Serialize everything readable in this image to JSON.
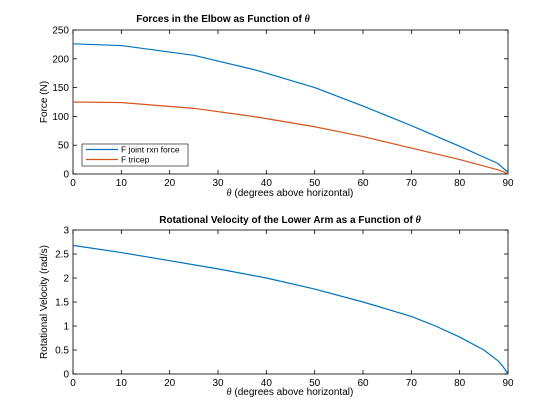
{
  "chart_data": [
    {
      "type": "line",
      "title": "Forces in the Elbow as Function of",
      "title_symbol": "θ",
      "xlabel_symbol": "θ",
      "xlabel": "(degrees above horizontal)",
      "ylabel": "Force (N)",
      "xlim": [
        0,
        90
      ],
      "ylim": [
        0,
        250
      ],
      "xticks": [
        "0",
        "10",
        "20",
        "30",
        "40",
        "50",
        "60",
        "70",
        "80",
        "90"
      ],
      "yticks": [
        "0",
        "50",
        "100",
        "150",
        "200",
        "250"
      ],
      "grid": false,
      "legend": "bottom-left",
      "series": [
        {
          "name": "F joint rxn force",
          "color": "#0072BD",
          "x": [
            0,
            10,
            25,
            38,
            50,
            60,
            70,
            80,
            88,
            89,
            90
          ],
          "y": [
            226,
            223,
            206,
            180,
            150,
            118,
            84,
            48,
            18,
            10,
            3
          ]
        },
        {
          "name": "F tricep",
          "color": "#D95319",
          "x": [
            0,
            10,
            25,
            38,
            50,
            60,
            70,
            80,
            88,
            89,
            90
          ],
          "y": [
            125,
            124,
            114,
            99,
            82,
            65,
            45,
            25,
            7,
            4,
            0
          ]
        }
      ]
    },
    {
      "type": "line",
      "title": "Rotational Velocity of the Lower Arm as a Function of",
      "title_symbol": "θ",
      "xlabel_symbol": "θ",
      "xlabel": "(degrees above horizontal)",
      "ylabel": "Rotational Velocity (rad/s)",
      "xlim": [
        0,
        90
      ],
      "ylim": [
        0,
        3
      ],
      "xticks": [
        "0",
        "10",
        "20",
        "30",
        "40",
        "50",
        "60",
        "70",
        "80",
        "90"
      ],
      "yticks": [
        "0",
        "0.5",
        "1",
        "1.5",
        "2",
        "2.5",
        "3"
      ],
      "grid": false,
      "series": [
        {
          "color": "#0072BD",
          "x": [
            0,
            10,
            20,
            30,
            40,
            50,
            60,
            70,
            75,
            80,
            85,
            88,
            89,
            90
          ],
          "y": [
            2.68,
            2.53,
            2.36,
            2.19,
            2.0,
            1.77,
            1.5,
            1.2,
            1.0,
            0.77,
            0.5,
            0.27,
            0.15,
            0.0
          ]
        }
      ]
    }
  ]
}
